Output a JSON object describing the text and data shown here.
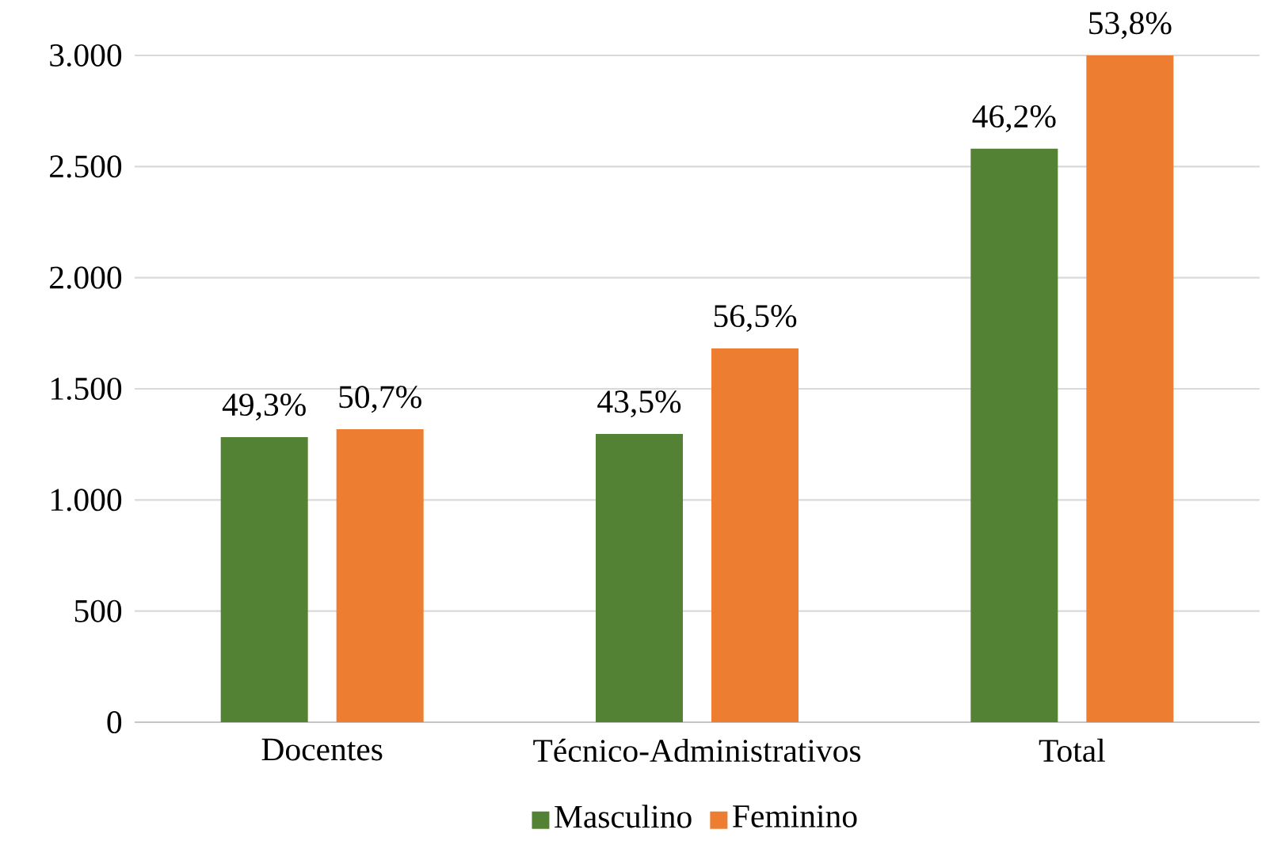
{
  "chart_data": {
    "type": "bar",
    "categories": [
      "Docentes",
      "Técnico-Administrativos",
      "Total"
    ],
    "series": [
      {
        "name": "Masculino",
        "color": "#548235",
        "values": [
          1283,
          1297,
          2580
        ]
      },
      {
        "name": "Feminino",
        "color": "#ed7d31",
        "values": [
          1318,
          1682,
          3000
        ]
      }
    ],
    "annotations": [
      "49,3%",
      "50,7%",
      "43,5%",
      "56,5%",
      "46,2%",
      "53,8%"
    ],
    "ylim": [
      0,
      3000
    ],
    "yticks": [
      {
        "value": 0,
        "label": "0"
      },
      {
        "value": 500,
        "label": "500"
      },
      {
        "value": 1000,
        "label": "1.000"
      },
      {
        "value": 1500,
        "label": "1.500"
      },
      {
        "value": 2000,
        "label": "2.000"
      },
      {
        "value": 2500,
        "label": "2.500"
      },
      {
        "value": 3000,
        "label": "3.000"
      }
    ],
    "grid": "y",
    "legend": "bottom"
  }
}
